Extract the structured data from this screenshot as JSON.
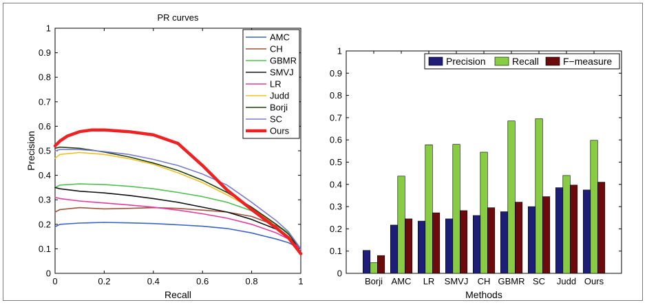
{
  "charts": [
    {
      "type": "line",
      "title": "PR curves",
      "xlabel": "Recall",
      "ylabel": "Precision",
      "xlim": [
        0,
        1
      ],
      "ylim": [
        0,
        1
      ],
      "xticks": [
        "0",
        "0.2",
        "0.4",
        "0.6",
        "0.8",
        "1"
      ],
      "yticks": [
        "0",
        "0.1",
        "0.2",
        "0.3",
        "0.4",
        "0.5",
        "0.6",
        "0.7",
        "0.8",
        "0.9",
        "1"
      ],
      "legend_position": "top-right",
      "series": [
        {
          "name": "AMC",
          "color": "#3a62c8",
          "x": [
            0,
            0.02,
            0.1,
            0.2,
            0.3,
            0.4,
            0.5,
            0.6,
            0.7,
            0.8,
            0.9,
            0.95,
            1.0
          ],
          "y": [
            0.19,
            0.2,
            0.205,
            0.208,
            0.206,
            0.203,
            0.198,
            0.192,
            0.183,
            0.165,
            0.14,
            0.125,
            0.1
          ]
        },
        {
          "name": "CH",
          "color": "#a0503a",
          "x": [
            0,
            0.02,
            0.1,
            0.2,
            0.3,
            0.4,
            0.5,
            0.6,
            0.7,
            0.8,
            0.9,
            0.95,
            1.0
          ],
          "y": [
            0.25,
            0.26,
            0.268,
            0.263,
            0.265,
            0.268,
            0.265,
            0.258,
            0.25,
            0.232,
            0.195,
            0.165,
            0.1
          ]
        },
        {
          "name": "GBMR",
          "color": "#4ec24e",
          "x": [
            0,
            0.02,
            0.1,
            0.2,
            0.3,
            0.4,
            0.5,
            0.6,
            0.7,
            0.8,
            0.9,
            0.95,
            1.0
          ],
          "y": [
            0.35,
            0.36,
            0.365,
            0.362,
            0.355,
            0.345,
            0.33,
            0.313,
            0.29,
            0.255,
            0.2,
            0.165,
            0.1
          ]
        },
        {
          "name": "SMVJ",
          "color": "#111111",
          "x": [
            0,
            0.02,
            0.1,
            0.2,
            0.3,
            0.4,
            0.5,
            0.6,
            0.7,
            0.8,
            0.9,
            0.95,
            1.0
          ],
          "y": [
            0.35,
            0.345,
            0.335,
            0.328,
            0.318,
            0.305,
            0.29,
            0.27,
            0.25,
            0.22,
            0.18,
            0.15,
            0.1
          ]
        },
        {
          "name": "LR",
          "color": "#e8389c",
          "x": [
            0,
            0.02,
            0.1,
            0.2,
            0.3,
            0.4,
            0.5,
            0.6,
            0.7,
            0.8,
            0.9,
            0.95,
            1.0
          ],
          "y": [
            0.31,
            0.305,
            0.295,
            0.287,
            0.279,
            0.27,
            0.258,
            0.243,
            0.225,
            0.2,
            0.165,
            0.14,
            0.1
          ]
        },
        {
          "name": "Judd",
          "color": "#f0c020",
          "x": [
            0,
            0.02,
            0.1,
            0.2,
            0.3,
            0.4,
            0.5,
            0.6,
            0.7,
            0.8,
            0.9,
            0.95,
            1.0
          ],
          "y": [
            0.47,
            0.485,
            0.493,
            0.485,
            0.468,
            0.445,
            0.41,
            0.37,
            0.32,
            0.265,
            0.2,
            0.16,
            0.1
          ]
        },
        {
          "name": "Borji",
          "color": "#1f3f12",
          "x": [
            0,
            0.02,
            0.1,
            0.2,
            0.3,
            0.4,
            0.5,
            0.6,
            0.7,
            0.8,
            0.9,
            0.95,
            1.0
          ],
          "y": [
            0.51,
            0.515,
            0.51,
            0.495,
            0.475,
            0.45,
            0.42,
            0.38,
            0.33,
            0.27,
            0.2,
            0.16,
            0.1
          ]
        },
        {
          "name": "SC",
          "color": "#7a7ad0",
          "x": [
            0,
            0.02,
            0.1,
            0.2,
            0.3,
            0.4,
            0.5,
            0.6,
            0.7,
            0.8,
            0.9,
            0.95,
            1.0
          ],
          "y": [
            0.5,
            0.505,
            0.505,
            0.497,
            0.485,
            0.465,
            0.44,
            0.405,
            0.36,
            0.29,
            0.215,
            0.17,
            0.1
          ]
        },
        {
          "name": "Ours",
          "color": "#ee2222",
          "x": [
            0,
            0.02,
            0.05,
            0.1,
            0.15,
            0.2,
            0.3,
            0.4,
            0.5,
            0.6,
            0.7,
            0.8,
            0.9,
            0.95,
            1.0
          ],
          "y": [
            0.52,
            0.54,
            0.56,
            0.578,
            0.585,
            0.585,
            0.578,
            0.565,
            0.53,
            0.44,
            0.34,
            0.26,
            0.185,
            0.145,
            0.08
          ]
        }
      ]
    },
    {
      "type": "bar",
      "xlabel": "Methods",
      "ylabel": "",
      "ylim": [
        0,
        1
      ],
      "yticks": [
        "0",
        "0.1",
        "0.2",
        "0.3",
        "0.4",
        "0.5",
        "0.6",
        "0.7",
        "0.8",
        "0.9",
        "1"
      ],
      "legend_position": "top",
      "categories": [
        "Borji",
        "AMC",
        "LR",
        "SMVJ",
        "CH",
        "GBMR",
        "SC",
        "Judd",
        "Ours"
      ],
      "series": [
        {
          "name": "Precision",
          "color": "#1e1e78",
          "values": [
            0.103,
            0.217,
            0.235,
            0.245,
            0.26,
            0.277,
            0.3,
            0.385,
            0.375
          ]
        },
        {
          "name": "Recall",
          "color": "#88cc44",
          "values": [
            0.048,
            0.437,
            0.578,
            0.58,
            0.545,
            0.685,
            0.695,
            0.44,
            0.598
          ]
        },
        {
          "name": "F−measure",
          "color": "#6b0b0b",
          "values": [
            0.08,
            0.245,
            0.272,
            0.282,
            0.295,
            0.32,
            0.345,
            0.397,
            0.41
          ]
        }
      ]
    }
  ]
}
